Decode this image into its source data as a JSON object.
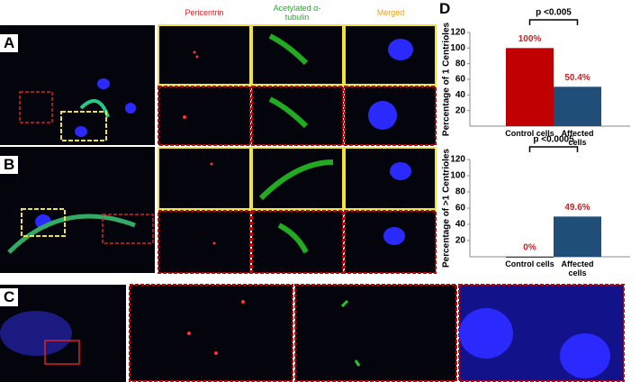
{
  "figure": {
    "panels": [
      "A",
      "B",
      "C",
      "D"
    ],
    "columns": [
      "Pericentrin",
      "Acetylated α-tubulin",
      "Merged"
    ]
  },
  "chart_data": [
    {
      "type": "bar",
      "ylabel": "Percentage of 1 Centrioles",
      "annotation": "p <0.005",
      "categories": [
        "Control cells",
        "Affected cells"
      ],
      "values": [
        100,
        50.4
      ],
      "value_labels": [
        "100%",
        "50.4%"
      ],
      "colors": [
        "#c00000",
        "#1f4e79"
      ],
      "ylim": [
        0,
        120
      ],
      "yticks": [
        20,
        40,
        60,
        80,
        100,
        120
      ]
    },
    {
      "type": "bar",
      "ylabel": "Percentage of >1 Centrioles",
      "annotation": "p <0.0005",
      "categories": [
        "Control cells",
        "Affected cells"
      ],
      "values": [
        0,
        49.6
      ],
      "value_labels": [
        "0%",
        "49.6%"
      ],
      "colors": [
        "#c00000",
        "#1f4e79"
      ],
      "ylim": [
        0,
        120
      ],
      "yticks": [
        20,
        40,
        60,
        80,
        100,
        120
      ]
    }
  ]
}
